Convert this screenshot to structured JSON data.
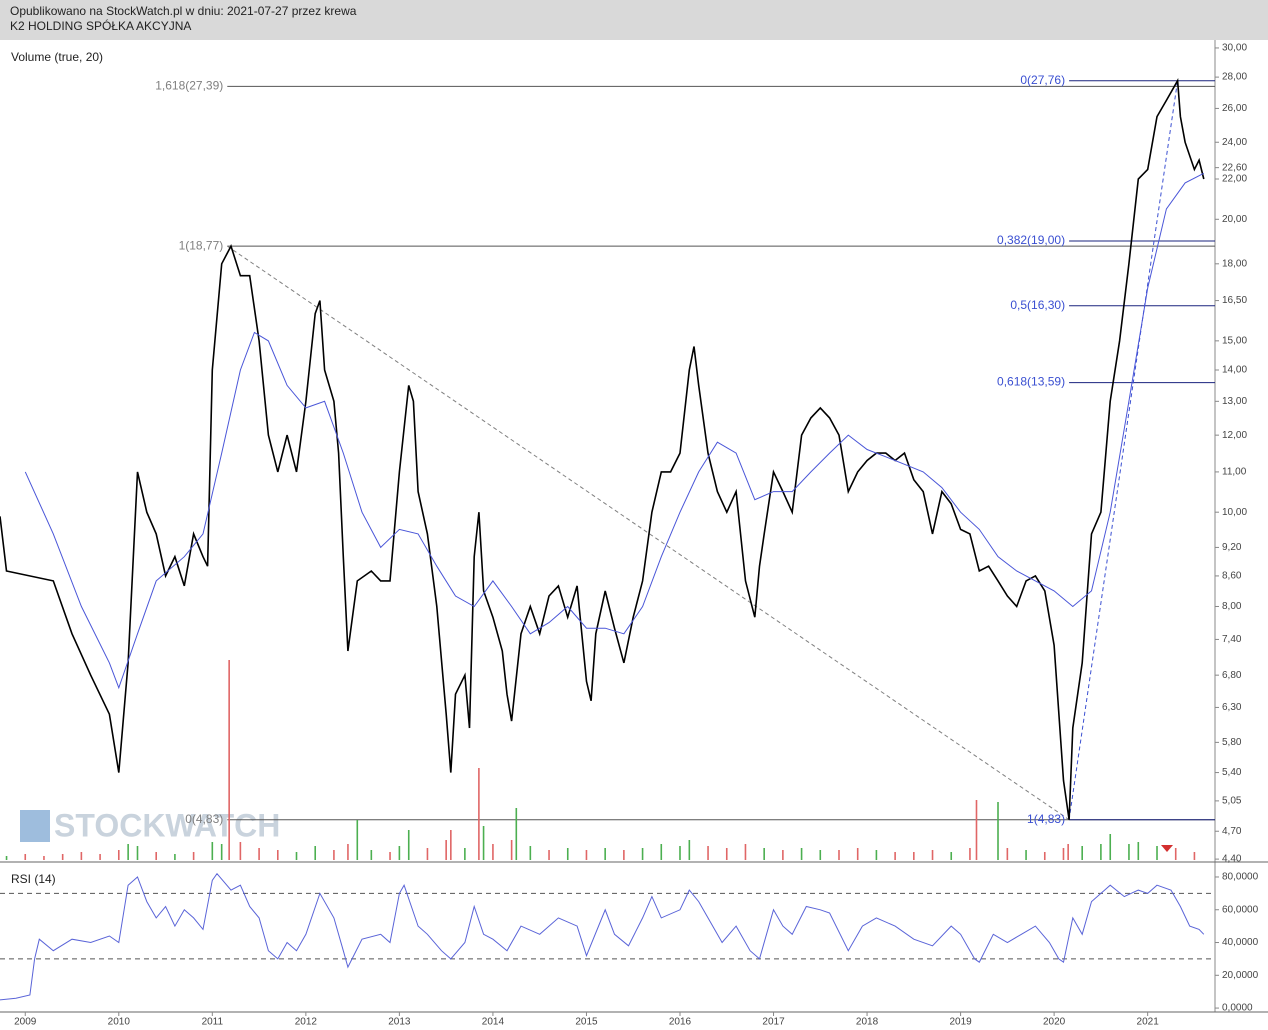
{
  "header": {
    "line1": "Opublikowano na StockWatch.pl w dniu: 2021-07-27 przez krewa",
    "line2": "K2 HOLDING SPÓŁKA AKCYJNA"
  },
  "watermark": "STOCKWATCH",
  "chart_data": [
    {
      "type": "line",
      "log_scale": true,
      "xlim": [
        2008.73,
        2021.72
      ],
      "ylim": [
        4.37,
        30.57
      ],
      "yticks": [
        {
          "value": 30,
          "label": "30,00"
        },
        {
          "value": 28,
          "label": "28,00"
        },
        {
          "value": 26,
          "label": "26,00"
        },
        {
          "value": 24,
          "label": "24,00"
        },
        {
          "value": 22.6,
          "label": "22,60"
        },
        {
          "value": 22,
          "label": "22,00"
        },
        {
          "value": 20,
          "label": "20,00"
        },
        {
          "value": 18,
          "label": "18,00"
        },
        {
          "value": 16.5,
          "label": "16,50"
        },
        {
          "value": 15,
          "label": "15,00"
        },
        {
          "value": 14,
          "label": "14,00"
        },
        {
          "value": 13,
          "label": "13,00"
        },
        {
          "value": 12,
          "label": "12,00"
        },
        {
          "value": 11,
          "label": "11,00"
        },
        {
          "value": 10,
          "label": "10,00"
        },
        {
          "value": 9.2,
          "label": "9,20"
        },
        {
          "value": 8.6,
          "label": "8,60"
        },
        {
          "value": 8,
          "label": "8,00"
        },
        {
          "value": 7.4,
          "label": "7,40"
        },
        {
          "value": 6.8,
          "label": "6,80"
        },
        {
          "value": 6.3,
          "label": "6,30"
        },
        {
          "value": 5.8,
          "label": "5,80"
        },
        {
          "value": 5.4,
          "label": "5,40"
        },
        {
          "value": 5.05,
          "label": "5,05"
        },
        {
          "value": 4.7,
          "label": "4,70"
        },
        {
          "value": 4.4,
          "label": "4,40"
        }
      ],
      "series": [
        {
          "color": "#000000",
          "x": [
            2008.73,
            2008.8,
            2009.3,
            2009.5,
            2009.7,
            2009.9,
            2010.0,
            2010.1,
            2010.2,
            2010.3,
            2010.4,
            2010.5,
            2010.6,
            2010.7,
            2010.8,
            2010.9,
            2010.95,
            2011.0,
            2011.1,
            2011.2,
            2011.3,
            2011.4,
            2011.5,
            2011.6,
            2011.7,
            2011.8,
            2011.9,
            2012.0,
            2012.1,
            2012.15,
            2012.2,
            2012.3,
            2012.35,
            2012.4,
            2012.45,
            2012.55,
            2012.7,
            2012.8,
            2012.9,
            2013.0,
            2013.1,
            2013.15,
            2013.2,
            2013.3,
            2013.4,
            2013.5,
            2013.55,
            2013.6,
            2013.7,
            2013.75,
            2013.8,
            2013.85,
            2013.9,
            2014.0,
            2014.1,
            2014.15,
            2014.2,
            2014.3,
            2014.4,
            2014.5,
            2014.6,
            2014.7,
            2014.8,
            2014.9,
            2015.0,
            2015.05,
            2015.1,
            2015.2,
            2015.3,
            2015.4,
            2015.5,
            2015.6,
            2015.7,
            2015.8,
            2015.9,
            2016.0,
            2016.1,
            2016.15,
            2016.2,
            2016.3,
            2016.4,
            2016.5,
            2016.6,
            2016.7,
            2016.8,
            2016.85,
            2016.9,
            2017.0,
            2017.1,
            2017.2,
            2017.3,
            2017.4,
            2017.5,
            2017.6,
            2017.7,
            2017.8,
            2017.9,
            2018.0,
            2018.1,
            2018.2,
            2018.3,
            2018.4,
            2018.5,
            2018.6,
            2018.7,
            2018.8,
            2018.9,
            2019.0,
            2019.1,
            2019.2,
            2019.3,
            2019.4,
            2019.5,
            2019.6,
            2019.7,
            2019.8,
            2019.9,
            2020.0,
            2020.1,
            2020.16,
            2020.2,
            2020.3,
            2020.4,
            2020.5,
            2020.6,
            2020.7,
            2020.8,
            2020.9,
            2021.0,
            2021.1,
            2021.2,
            2021.32,
            2021.35,
            2021.4,
            2021.5,
            2021.55,
            2021.6
          ],
          "values": [
            9.9,
            8.7,
            8.5,
            7.5,
            6.8,
            6.2,
            5.4,
            7.0,
            11.0,
            10.0,
            9.5,
            8.6,
            9.0,
            8.4,
            9.5,
            9.0,
            8.8,
            14.0,
            18.0,
            18.77,
            17.5,
            17.5,
            15.0,
            12.0,
            11.0,
            12.0,
            11.0,
            13.0,
            16.0,
            16.5,
            14.0,
            13.0,
            11.5,
            9.0,
            7.2,
            8.5,
            8.7,
            8.5,
            8.5,
            11.0,
            13.5,
            13.0,
            10.5,
            9.5,
            8.0,
            6.2,
            5.4,
            6.5,
            6.8,
            6.0,
            9.0,
            10.0,
            8.3,
            7.8,
            7.2,
            6.5,
            6.1,
            7.5,
            8.0,
            7.5,
            8.2,
            8.4,
            7.8,
            8.4,
            6.7,
            6.4,
            7.5,
            8.3,
            7.6,
            7.0,
            7.8,
            8.5,
            10.0,
            11.0,
            11.0,
            11.5,
            14.0,
            14.8,
            13.5,
            11.5,
            10.5,
            10.0,
            10.5,
            8.5,
            7.8,
            8.8,
            9.5,
            11.0,
            10.5,
            10.0,
            12.0,
            12.5,
            12.8,
            12.5,
            12.0,
            10.5,
            11.0,
            11.3,
            11.5,
            11.5,
            11.3,
            11.5,
            10.8,
            10.5,
            9.5,
            10.5,
            10.2,
            9.6,
            9.5,
            8.7,
            8.8,
            8.5,
            8.2,
            8.0,
            8.5,
            8.6,
            8.3,
            7.3,
            5.3,
            4.83,
            6.0,
            7.0,
            9.5,
            10.0,
            13.0,
            15.0,
            18.0,
            22.0,
            22.5,
            25.5,
            26.5,
            27.76,
            25.5,
            24.0,
            22.5,
            23.0,
            22.0
          ]
        },
        {
          "color": "#4a56d8",
          "x": [
            2009.0,
            2009.3,
            2009.6,
            2009.9,
            2010.0,
            2010.2,
            2010.4,
            2010.7,
            2010.9,
            2011.1,
            2011.3,
            2011.45,
            2011.6,
            2011.8,
            2012.0,
            2012.2,
            2012.4,
            2012.6,
            2012.8,
            2013.0,
            2013.2,
            2013.4,
            2013.6,
            2013.8,
            2014.0,
            2014.2,
            2014.4,
            2014.6,
            2014.8,
            2015.0,
            2015.2,
            2015.4,
            2015.6,
            2015.8,
            2016.0,
            2016.2,
            2016.4,
            2016.6,
            2016.8,
            2017.0,
            2017.2,
            2017.4,
            2017.6,
            2017.8,
            2018.0,
            2018.2,
            2018.4,
            2018.6,
            2018.8,
            2019.0,
            2019.2,
            2019.4,
            2019.6,
            2019.8,
            2020.0,
            2020.2,
            2020.4,
            2020.6,
            2020.8,
            2021.0,
            2021.2,
            2021.4,
            2021.6
          ],
          "values": [
            11.0,
            9.5,
            8.0,
            7.0,
            6.6,
            7.5,
            8.5,
            9.0,
            9.5,
            11.5,
            14.0,
            15.3,
            15.0,
            13.5,
            12.8,
            13.0,
            11.5,
            10.0,
            9.2,
            9.6,
            9.5,
            8.8,
            8.2,
            8.0,
            8.5,
            8.0,
            7.5,
            7.7,
            8.0,
            7.6,
            7.6,
            7.5,
            8.0,
            9.0,
            10.0,
            11.0,
            11.8,
            11.5,
            10.3,
            10.5,
            10.5,
            11.0,
            11.5,
            12.0,
            11.6,
            11.4,
            11.2,
            11.0,
            10.6,
            10.0,
            9.6,
            9.0,
            8.7,
            8.5,
            8.3,
            8.0,
            8.3,
            10.0,
            13.0,
            17.0,
            20.5,
            21.8,
            22.3
          ]
        }
      ],
      "fibonacci": [
        {
          "x_from": 2011.16,
          "x_to": 2020.16,
          "color": "#808080",
          "line_color": "#555555",
          "levels": [
            {
              "value": 27.39,
              "label": "1,618(27,39)"
            },
            {
              "value": 18.77,
              "label": "1(18,77)"
            },
            {
              "value": 4.83,
              "label": "0(4,83)"
            }
          ]
        },
        {
          "x_from": 2020.16,
          "x_to": 2021.32,
          "color": "#3a4fd1",
          "line_color": "#1a237e",
          "levels": [
            {
              "value": 27.76,
              "label": "0(27,76)"
            },
            {
              "value": 19.0,
              "label": "0,382(19,00)"
            },
            {
              "value": 16.3,
              "label": "0,5(16,30)"
            },
            {
              "value": 13.59,
              "label": "0,618(13,59)"
            },
            {
              "value": 4.83,
              "label": "1(4,83)"
            }
          ]
        }
      ]
    },
    {
      "type": "bar",
      "title": "Volume (true, 20)",
      "xlim": [
        2008.73,
        2021.72
      ],
      "x": [
        2008.8,
        2009.0,
        2009.2,
        2009.4,
        2009.6,
        2009.8,
        2010.0,
        2010.1,
        2010.2,
        2010.4,
        2010.6,
        2010.8,
        2011.0,
        2011.1,
        2011.18,
        2011.3,
        2011.5,
        2011.7,
        2011.9,
        2012.1,
        2012.3,
        2012.45,
        2012.55,
        2012.7,
        2012.9,
        2013.0,
        2013.1,
        2013.3,
        2013.5,
        2013.55,
        2013.7,
        2013.85,
        2013.9,
        2014.0,
        2014.2,
        2014.25,
        2014.4,
        2014.6,
        2014.8,
        2015.0,
        2015.2,
        2015.4,
        2015.6,
        2015.8,
        2016.0,
        2016.1,
        2016.3,
        2016.5,
        2016.7,
        2016.9,
        2017.1,
        2017.3,
        2017.5,
        2017.7,
        2017.9,
        2018.1,
        2018.3,
        2018.5,
        2018.7,
        2018.9,
        2019.1,
        2019.17,
        2019.4,
        2019.5,
        2019.7,
        2019.9,
        2020.1,
        2020.15,
        2020.3,
        2020.5,
        2020.6,
        2020.8,
        2020.9,
        2021.1,
        2021.3,
        2021.5
      ],
      "values": [
        2,
        3,
        2,
        3,
        4,
        3,
        5,
        8,
        7,
        4,
        3,
        4,
        9,
        8,
        100,
        9,
        6,
        5,
        4,
        7,
        5,
        8,
        20,
        5,
        4,
        7,
        15,
        6,
        10,
        15,
        6,
        46,
        17,
        8,
        10,
        26,
        7,
        5,
        6,
        5,
        6,
        5,
        6,
        8,
        7,
        10,
        7,
        6,
        8,
        6,
        5,
        6,
        5,
        5,
        6,
        5,
        4,
        4,
        5,
        4,
        6,
        30,
        29,
        6,
        5,
        4,
        6,
        8,
        7,
        8,
        13,
        8,
        9,
        7,
        6,
        4
      ],
      "colors": [
        "#4caf50",
        "#e06666",
        "#e06666",
        "#e06666",
        "#e06666",
        "#e06666",
        "#e06666",
        "#4caf50",
        "#4caf50",
        "#e06666",
        "#4caf50",
        "#e06666",
        "#4caf50",
        "#4caf50",
        "#e06666",
        "#e06666",
        "#e06666",
        "#e06666",
        "#4caf50",
        "#4caf50",
        "#e06666",
        "#e06666",
        "#4caf50",
        "#4caf50",
        "#e06666",
        "#4caf50",
        "#4caf50",
        "#e06666",
        "#e06666",
        "#e06666",
        "#4caf50",
        "#e06666",
        "#4caf50",
        "#e06666",
        "#e06666",
        "#4caf50",
        "#4caf50",
        "#e06666",
        "#4caf50",
        "#e06666",
        "#4caf50",
        "#e06666",
        "#4caf50",
        "#4caf50",
        "#4caf50",
        "#4caf50",
        "#e06666",
        "#e06666",
        "#e06666",
        "#4caf50",
        "#e06666",
        "#4caf50",
        "#4caf50",
        "#e06666",
        "#e06666",
        "#4caf50",
        "#e06666",
        "#e06666",
        "#e06666",
        "#4caf50",
        "#e06666",
        "#e06666",
        "#4caf50",
        "#e06666",
        "#4caf50",
        "#e06666",
        "#e06666",
        "#e06666",
        "#4caf50",
        "#4caf50",
        "#4caf50",
        "#4caf50",
        "#4caf50",
        "#4caf50",
        "#e06666",
        "#e06666"
      ]
    },
    {
      "type": "line",
      "title": "RSI (14)",
      "xlim": [
        2008.73,
        2021.72
      ],
      "ylim": [
        -2.4,
        86.7
      ],
      "xticks": [
        2009,
        2010,
        2011,
        2012,
        2013,
        2014,
        2015,
        2016,
        2017,
        2018,
        2019,
        2020,
        2021
      ],
      "yticks": [
        {
          "value": 80,
          "label": "80,0000"
        },
        {
          "value": 60,
          "label": "60,0000"
        },
        {
          "value": 40,
          "label": "40,0000"
        },
        {
          "value": 20,
          "label": "20,0000"
        },
        {
          "value": 0,
          "label": "0,0000"
        }
      ],
      "hlines": [
        70,
        30
      ],
      "series": [
        {
          "color": "#5a64d8",
          "x": [
            2008.73,
            2008.9,
            2009.05,
            2009.1,
            2009.15,
            2009.3,
            2009.5,
            2009.7,
            2009.9,
            2010.0,
            2010.1,
            2010.2,
            2010.3,
            2010.4,
            2010.5,
            2010.6,
            2010.7,
            2010.8,
            2010.9,
            2011.0,
            2011.05,
            2011.2,
            2011.3,
            2011.4,
            2011.5,
            2011.6,
            2011.7,
            2011.8,
            2011.9,
            2012.0,
            2012.15,
            2012.3,
            2012.4,
            2012.45,
            2012.6,
            2012.8,
            2012.9,
            2013.0,
            2013.05,
            2013.2,
            2013.3,
            2013.45,
            2013.55,
            2013.7,
            2013.8,
            2013.9,
            2014.0,
            2014.15,
            2014.3,
            2014.5,
            2014.7,
            2014.9,
            2015.0,
            2015.2,
            2015.3,
            2015.45,
            2015.6,
            2015.7,
            2015.8,
            2016.0,
            2016.1,
            2016.2,
            2016.3,
            2016.45,
            2016.6,
            2016.75,
            2016.85,
            2017.0,
            2017.1,
            2017.2,
            2017.35,
            2017.5,
            2017.6,
            2017.8,
            2017.95,
            2018.1,
            2018.3,
            2018.5,
            2018.7,
            2018.9,
            2019.0,
            2019.15,
            2019.2,
            2019.35,
            2019.5,
            2019.65,
            2019.8,
            2019.95,
            2020.05,
            2020.1,
            2020.2,
            2020.3,
            2020.4,
            2020.5,
            2020.6,
            2020.75,
            2020.9,
            2021.0,
            2021.1,
            2021.25,
            2021.35,
            2021.45,
            2021.55,
            2021.6
          ],
          "values": [
            5,
            6,
            8,
            30,
            42,
            35,
            42,
            40,
            44,
            40,
            75,
            80,
            65,
            55,
            62,
            50,
            60,
            55,
            48,
            78,
            82,
            72,
            75,
            62,
            55,
            35,
            30,
            40,
            35,
            45,
            70,
            55,
            35,
            25,
            42,
            45,
            40,
            70,
            75,
            50,
            45,
            35,
            30,
            40,
            62,
            45,
            42,
            35,
            50,
            45,
            55,
            50,
            32,
            60,
            45,
            38,
            55,
            68,
            55,
            60,
            72,
            65,
            55,
            40,
            50,
            35,
            30,
            60,
            50,
            45,
            62,
            60,
            58,
            35,
            50,
            55,
            50,
            42,
            38,
            50,
            45,
            30,
            28,
            45,
            40,
            45,
            50,
            40,
            30,
            28,
            55,
            45,
            65,
            70,
            75,
            68,
            72,
            70,
            75,
            72,
            62,
            50,
            48,
            45
          ]
        }
      ]
    }
  ]
}
